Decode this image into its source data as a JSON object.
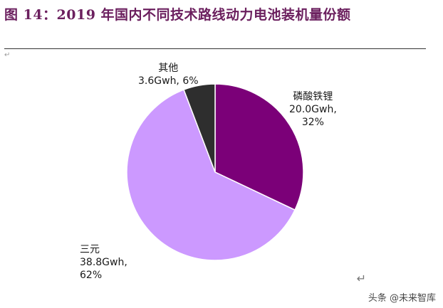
{
  "title": "图 14：2019 年国内不同技术路线动力电池装机量份额",
  "marks": {
    "left": "↵",
    "right": "↵"
  },
  "watermark": "头条 @未来智库",
  "chart_data": {
    "type": "pie",
    "title": "",
    "slices": [
      {
        "name": "磷酸铁锂",
        "value": 20.0,
        "value_label": "20.0Gwh,",
        "percent_label": "32%",
        "percent": 32,
        "color": "#7b0078"
      },
      {
        "name": "三元",
        "value": 38.8,
        "value_label": "38.8Gwh,",
        "percent_label": "62%",
        "percent": 62,
        "color": "#cc99ff"
      },
      {
        "name": "其他",
        "value": 3.6,
        "value_label": "3.6Gwh,",
        "percent_label": "6%",
        "percent": 6,
        "color": "#2e2e2e"
      }
    ],
    "start_angle_deg": 0,
    "direction": "clockwise",
    "border_color": "#ffffff"
  }
}
